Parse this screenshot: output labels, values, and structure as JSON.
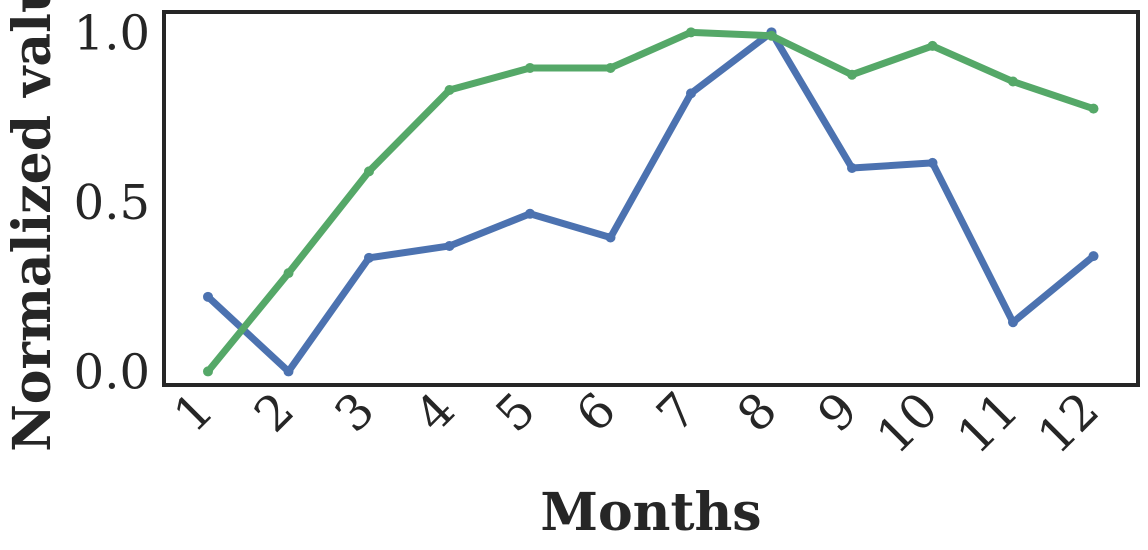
{
  "chart_data": {
    "type": "line",
    "title": "",
    "xlabel": "Months",
    "ylabel": "Normalized value",
    "categories": [
      "1",
      "2",
      "3",
      "4",
      "5",
      "6",
      "7",
      "8",
      "9",
      "10",
      "11",
      "12"
    ],
    "yticks": [
      "0.0",
      "0.5",
      "1.0"
    ],
    "ylim": [
      -0.04,
      1.06
    ],
    "grid": false,
    "series": [
      {
        "color": "#4c72b0",
        "values": [
          0.22,
          0.0,
          0.335,
          0.37,
          0.465,
          0.395,
          0.82,
          1.0,
          0.6,
          0.615,
          0.145,
          0.34
        ]
      },
      {
        "color": "#55a868",
        "values": [
          0.0,
          0.29,
          0.59,
          0.83,
          0.895,
          0.895,
          1.0,
          0.99,
          0.875,
          0.96,
          0.855,
          0.775
        ]
      }
    ]
  }
}
